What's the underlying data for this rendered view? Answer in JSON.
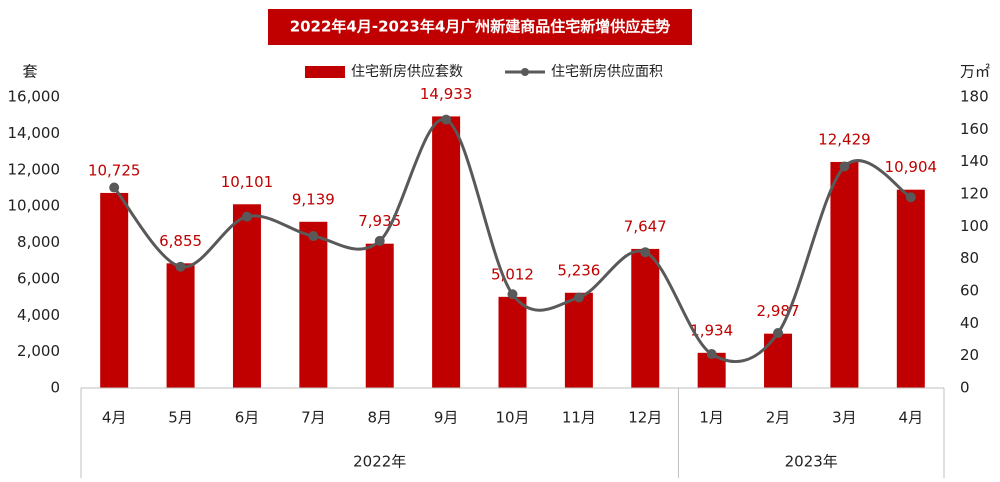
{
  "chart_data": {
    "type": "bar",
    "title": "2022年4月-2023年4月广州新建商品住宅新增供应走势",
    "y_label": "套",
    "y2_label": "万㎡",
    "categories": [
      "4月",
      "5月",
      "6月",
      "7月",
      "8月",
      "9月",
      "10月",
      "11月",
      "12月",
      "1月",
      "2月",
      "3月",
      "4月"
    ],
    "x_groups": [
      {
        "label": "2022年",
        "span": 9
      },
      {
        "label": "2023年",
        "span": 4
      }
    ],
    "series": [
      {
        "name": "住宅新房供应套数",
        "type": "bar",
        "color": "#c00000",
        "values": [
          10725,
          6855,
          10101,
          9139,
          7935,
          14933,
          5012,
          5236,
          7647,
          1934,
          2987,
          12429,
          10904
        ],
        "value_labels": [
          "10,725",
          "6,855",
          "10,101",
          "9,139",
          "7,935",
          "14,933",
          "5,012",
          "5,236",
          "7,647",
          "1,934",
          "2,987",
          "12,429",
          "10,904"
        ]
      },
      {
        "name": "住宅新房供应面积",
        "type": "line",
        "axis": "y2",
        "color": "#595959",
        "values": [
          124,
          75,
          106,
          94,
          91,
          166,
          58,
          56,
          84,
          21,
          34,
          137,
          118
        ]
      }
    ],
    "ylim": [
      0,
      16000
    ],
    "yticks": [
      0,
      {
        "value": 2000,
        "label": "2,000"
      },
      {
        "value": 4000,
        "label": "4,000"
      },
      {
        "value": 6000,
        "label": "6,000"
      },
      {
        "value": 8000,
        "label": "8,000"
      },
      {
        "value": 10000,
        "label": "10,000"
      },
      {
        "value": 12000,
        "label": "12,000"
      },
      {
        "value": 14000,
        "label": "14,000"
      },
      {
        "value": 16000,
        "label": "16,000"
      }
    ],
    "y2lim": [
      0,
      180
    ],
    "y2ticks": [
      0,
      20,
      40,
      60,
      80,
      100,
      120,
      140,
      160,
      180
    ],
    "legend": "top"
  }
}
